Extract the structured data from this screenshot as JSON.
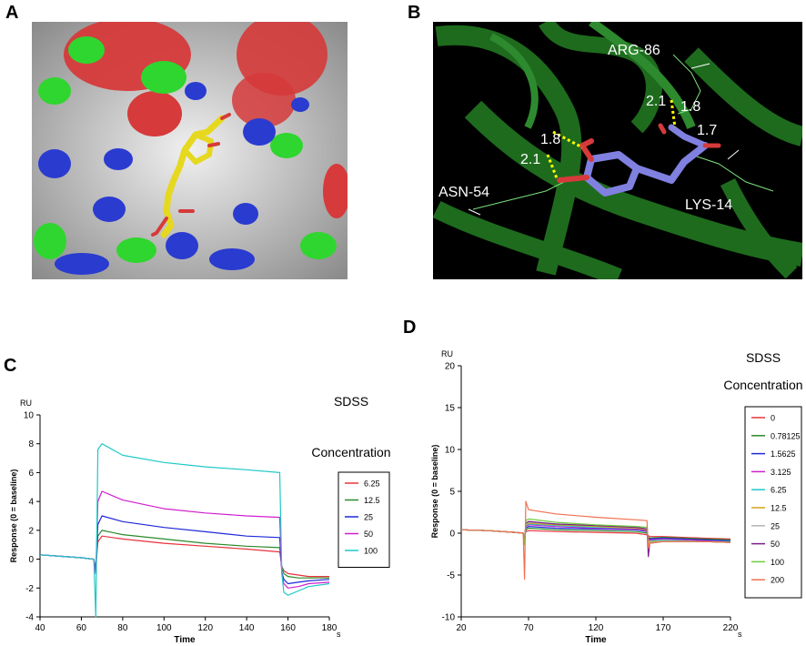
{
  "panels": {
    "a": {
      "letter": "A"
    },
    "b": {
      "letter": "B",
      "residues": [
        "ARG-86",
        "ASN-54",
        "LYS-14"
      ],
      "distances": [
        "2.1",
        "1.8",
        "1.8",
        "2.1",
        "1.7"
      ]
    },
    "c": {
      "letter": "C"
    },
    "d": {
      "letter": "D"
    }
  },
  "colors": {
    "surface": "#c8c8c8",
    "oxygen_patch": "#d63a3a",
    "nitrogen_patch": "#2a3bd0",
    "carbon_patch": "#2fd62f",
    "ligand_a": "#e6d81e",
    "protein_ribbon": "#1e6b1e",
    "ligand_b": "#8080e0",
    "hbond": "#ffff00"
  },
  "chart_data": [
    {
      "type": "line",
      "panel": "C",
      "title": "",
      "xlabel": "Time",
      "ylabel": "Response (0 = baseline)",
      "y_unit": "RU",
      "x_unit": "s",
      "xlim": [
        40,
        180
      ],
      "ylim": [
        -4,
        10
      ],
      "xticks": [
        40,
        60,
        80,
        100,
        120,
        140,
        160,
        180
      ],
      "yticks": [
        -4,
        -2,
        0,
        2,
        4,
        6,
        8,
        10
      ],
      "legend_title_1": "SDSS",
      "legend_title_2": "Concentration",
      "legend_position": "right",
      "series": [
        {
          "name": "6.25",
          "color": "#e8323c",
          "x": [
            40,
            50,
            60,
            66,
            67,
            68,
            70,
            80,
            100,
            120,
            140,
            156,
            157,
            158,
            160,
            165,
            170,
            180
          ],
          "y": [
            0.3,
            0.2,
            0.1,
            0,
            -0.6,
            1.2,
            1.6,
            1.4,
            1.1,
            0.9,
            0.7,
            0.5,
            -0.5,
            -0.8,
            -1.0,
            -1.1,
            -1.2,
            -1.2
          ]
        },
        {
          "name": "12.5",
          "color": "#2a8a2a",
          "x": [
            40,
            50,
            60,
            66,
            67,
            68,
            70,
            80,
            100,
            120,
            140,
            156,
            157,
            158,
            160,
            165,
            170,
            180
          ],
          "y": [
            0.3,
            0.2,
            0.1,
            0,
            -0.6,
            1.6,
            2.0,
            1.7,
            1.4,
            1.1,
            0.9,
            0.8,
            -0.6,
            -1.0,
            -1.2,
            -1.3,
            -1.3,
            -1.3
          ]
        },
        {
          "name": "25",
          "color": "#1e28d8",
          "x": [
            40,
            50,
            60,
            66,
            67,
            68,
            70,
            80,
            100,
            120,
            140,
            156,
            157,
            158,
            160,
            165,
            170,
            180
          ],
          "y": [
            0.3,
            0.2,
            0.1,
            0,
            -0.8,
            2.4,
            3.0,
            2.6,
            2.2,
            1.9,
            1.6,
            1.5,
            -0.9,
            -1.4,
            -1.7,
            -1.6,
            -1.5,
            -1.4
          ]
        },
        {
          "name": "50",
          "color": "#d01ed0",
          "x": [
            40,
            50,
            60,
            66,
            67,
            68,
            70,
            80,
            100,
            120,
            140,
            156,
            157,
            158,
            160,
            165,
            170,
            180
          ],
          "y": [
            0.3,
            0.2,
            0.1,
            0,
            -1.0,
            4.0,
            4.7,
            4.1,
            3.5,
            3.2,
            3.0,
            2.9,
            -1.0,
            -1.7,
            -2.0,
            -1.9,
            -1.7,
            -1.6
          ]
        },
        {
          "name": "100",
          "color": "#20c8c8",
          "x": [
            40,
            50,
            60,
            66,
            67,
            68,
            70,
            80,
            100,
            120,
            140,
            156,
            157,
            158,
            160,
            165,
            170,
            180
          ],
          "y": [
            0.3,
            0.2,
            0.1,
            0,
            -4.0,
            7.6,
            8.0,
            7.2,
            6.7,
            6.4,
            6.2,
            6.0,
            -1.0,
            -2.3,
            -2.5,
            -2.2,
            -1.9,
            -1.7
          ]
        }
      ]
    },
    {
      "type": "line",
      "panel": "D",
      "title": "",
      "xlabel": "Time",
      "ylabel": "Response (0 = baseline)",
      "y_unit": "RU",
      "x_unit": "s",
      "xlim": [
        20,
        220
      ],
      "ylim": [
        -10,
        20
      ],
      "xticks": [
        20,
        70,
        120,
        170,
        220
      ],
      "yticks": [
        -10,
        -5,
        0,
        5,
        10,
        15,
        20
      ],
      "legend_title_1": "SDSS",
      "legend_title_2": "Concentration",
      "legend_position": "right",
      "series": [
        {
          "name": "0",
          "color": "#e8323c",
          "x": [
            20,
            40,
            60,
            66,
            67,
            68,
            70,
            90,
            120,
            150,
            158,
            159,
            160,
            170,
            200,
            220
          ],
          "y": [
            0.4,
            0.3,
            0.1,
            0,
            -0.4,
            0.2,
            0.3,
            0.2,
            0.1,
            0,
            -0.2,
            -0.3,
            -0.4,
            -0.4,
            -0.6,
            -0.7
          ]
        },
        {
          "name": "0.78125",
          "color": "#2a8a2a",
          "x": [
            20,
            40,
            60,
            66,
            67,
            68,
            70,
            90,
            120,
            150,
            158,
            159,
            160,
            170,
            200,
            220
          ],
          "y": [
            0.4,
            0.3,
            0.1,
            0,
            -0.5,
            0.4,
            0.6,
            0.4,
            0.3,
            0.2,
            0,
            -0.5,
            -0.6,
            -0.5,
            -0.7,
            -0.8
          ]
        },
        {
          "name": "1.5625",
          "color": "#1e28d8",
          "x": [
            20,
            40,
            60,
            66,
            67,
            68,
            70,
            90,
            120,
            150,
            158,
            159,
            160,
            170,
            200,
            220
          ],
          "y": [
            0.4,
            0.3,
            0.1,
            0,
            -0.6,
            0.6,
            0.8,
            0.6,
            0.5,
            0.4,
            0.2,
            -0.6,
            -0.7,
            -0.6,
            -0.8,
            -0.9
          ]
        },
        {
          "name": "3.125",
          "color": "#d01ed0",
          "x": [
            20,
            40,
            60,
            66,
            67,
            68,
            70,
            90,
            120,
            150,
            158,
            159,
            160,
            170,
            200,
            220
          ],
          "y": [
            0.4,
            0.3,
            0.1,
            0,
            -0.7,
            0.8,
            1.0,
            0.8,
            0.6,
            0.5,
            0.3,
            -0.8,
            -0.8,
            -0.7,
            -0.9,
            -1.0
          ]
        },
        {
          "name": "6.25",
          "color": "#20c8c8",
          "x": [
            20,
            40,
            60,
            66,
            67,
            68,
            70,
            90,
            120,
            150,
            158,
            159,
            160,
            170,
            200,
            220
          ],
          "y": [
            0.4,
            0.3,
            0.1,
            0,
            -0.7,
            0.9,
            1.1,
            0.9,
            0.7,
            0.6,
            0.4,
            -0.9,
            -0.9,
            -0.8,
            -1.0,
            -1.0
          ]
        },
        {
          "name": "12.5",
          "color": "#d4a21e",
          "x": [
            20,
            40,
            60,
            66,
            67,
            68,
            70,
            90,
            120,
            150,
            158,
            159,
            160,
            170,
            200,
            220
          ],
          "y": [
            0.4,
            0.3,
            0.1,
            0,
            -0.8,
            1.0,
            1.2,
            1.0,
            0.8,
            0.6,
            0.4,
            -1.0,
            -1.0,
            -0.9,
            -1.0,
            -1.1
          ]
        },
        {
          "name": "25",
          "color": "#b4b4b4",
          "x": [
            20,
            40,
            60,
            66,
            67,
            68,
            70,
            90,
            120,
            150,
            158,
            159,
            160,
            170,
            200,
            220
          ],
          "y": [
            0.4,
            0.3,
            0.1,
            0,
            -0.8,
            1.1,
            1.3,
            1.1,
            0.9,
            0.7,
            0.5,
            -1.2,
            -1.1,
            -0.9,
            -1.0,
            -1.1
          ]
        },
        {
          "name": "50",
          "color": "#7a1e8a",
          "x": [
            20,
            40,
            60,
            66,
            67,
            68,
            70,
            90,
            120,
            150,
            158,
            159,
            160,
            170,
            200,
            220
          ],
          "y": [
            0.4,
            0.3,
            0.1,
            0,
            -1.2,
            1.2,
            1.4,
            1.1,
            0.9,
            0.7,
            0.5,
            -2.8,
            -1.2,
            -1.0,
            -1.0,
            -1.1
          ]
        },
        {
          "name": "100",
          "color": "#6ccf3c",
          "x": [
            20,
            40,
            60,
            66,
            67,
            68,
            70,
            90,
            120,
            150,
            158,
            159,
            160,
            170,
            200,
            220
          ],
          "y": [
            0.4,
            0.3,
            0.1,
            0,
            -1.4,
            1.5,
            1.7,
            1.3,
            1.0,
            0.8,
            0.7,
            -1.6,
            -1.2,
            -1.0,
            -1.0,
            -1.1
          ]
        },
        {
          "name": "200",
          "color": "#f07050",
          "x": [
            20,
            40,
            60,
            66,
            67,
            68,
            70,
            90,
            120,
            150,
            158,
            159,
            160,
            170,
            200,
            220
          ],
          "y": [
            0.4,
            0.3,
            0.1,
            0,
            -5.5,
            3.8,
            2.8,
            2.3,
            1.9,
            1.6,
            1.5,
            -1.8,
            -1.2,
            -1.0,
            -1.0,
            -1.1
          ]
        }
      ]
    }
  ]
}
